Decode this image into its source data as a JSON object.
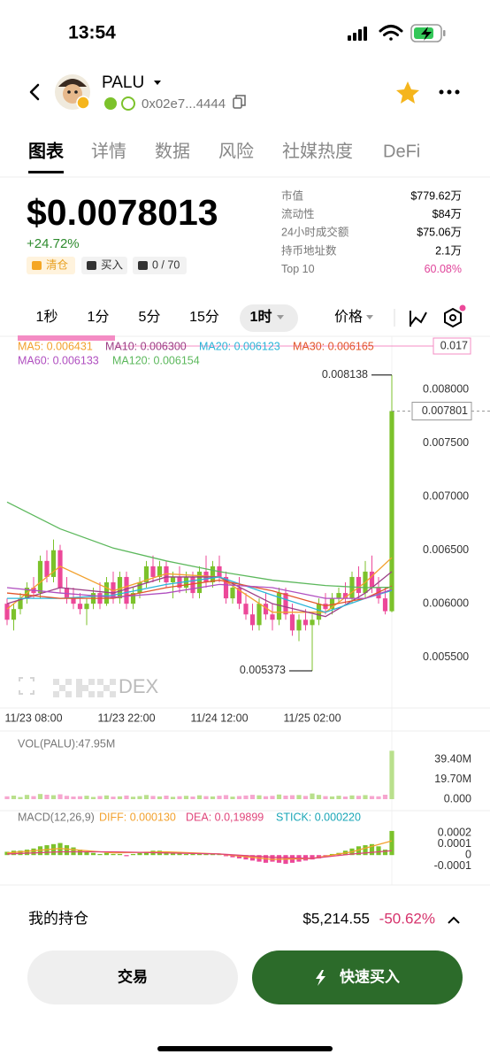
{
  "status_bar": {
    "time": "13:54"
  },
  "header": {
    "token": "PALU",
    "address": "0x02e7...4444"
  },
  "tabs": [
    "图表",
    "详情",
    "数据",
    "风险",
    "社媒热度",
    "DeFi"
  ],
  "price": {
    "value": "$0.0078013",
    "change": "+24.72%",
    "actions": [
      "清仓",
      "买入",
      "0 / 70"
    ]
  },
  "stats": [
    {
      "label": "市值",
      "value": "$779.62万"
    },
    {
      "label": "流动性",
      "value": "$84万"
    },
    {
      "label": "24小时成交额",
      "value": "$75.06万"
    },
    {
      "label": "持币地址数",
      "value": "2.1万"
    },
    {
      "label": "Top 10",
      "value": "60.08%"
    }
  ],
  "intervals": [
    "1秒",
    "1分",
    "5分",
    "15分",
    "1时"
  ],
  "price_toggle": "价格",
  "watermark": "DEX",
  "chart_data": [
    {
      "type": "candlestick",
      "categories": [
        null,
        null,
        null,
        null,
        "11/23 08:00",
        null,
        null,
        null,
        null,
        null,
        null,
        null,
        null,
        null,
        null,
        null,
        null,
        null,
        "11/23 22:00",
        null,
        null,
        null,
        null,
        null,
        null,
        null,
        null,
        null,
        null,
        null,
        null,
        null,
        "11/24 12:00",
        null,
        null,
        null,
        null,
        null,
        null,
        null,
        null,
        null,
        null,
        null,
        null,
        null,
        "11/25 02:00",
        null,
        null,
        null,
        null,
        null,
        null,
        null,
        null,
        null,
        null,
        null,
        null
      ],
      "open": [
        0.006,
        0.00585,
        0.00595,
        0.00605,
        0.00615,
        0.0061,
        0.0064,
        0.00625,
        0.0065,
        0.00615,
        0.00605,
        0.006,
        0.00595,
        0.006,
        0.0061,
        0.006,
        0.0062,
        0.00605,
        0.00625,
        0.006,
        0.0061,
        0.0062,
        0.00635,
        0.00625,
        0.00635,
        0.0062,
        0.00625,
        0.00615,
        0.00625,
        0.0061,
        0.0063,
        0.0062,
        0.00635,
        0.00625,
        0.00605,
        0.00615,
        0.006,
        0.0059,
        0.0058,
        0.006,
        0.0059,
        0.00585,
        0.0061,
        0.0059,
        0.00575,
        0.00585,
        0.0058,
        0.00585,
        0.006,
        0.00595,
        0.00605,
        0.0061,
        0.00605,
        0.00625,
        0.0061,
        0.0063,
        0.00615,
        0.00605,
        0.00593
      ],
      "high": [
        0.00605,
        0.006,
        0.0061,
        0.0062,
        0.00625,
        0.00645,
        0.0065,
        0.0066,
        0.00655,
        0.00625,
        0.00615,
        0.0061,
        0.00605,
        0.00615,
        0.0062,
        0.00625,
        0.0063,
        0.0063,
        0.0063,
        0.00615,
        0.00625,
        0.0064,
        0.00645,
        0.0064,
        0.0064,
        0.0063,
        0.00635,
        0.0063,
        0.0063,
        0.00635,
        0.00645,
        0.0064,
        0.00645,
        0.0063,
        0.0062,
        0.00625,
        0.0061,
        0.006,
        0.00605,
        0.0061,
        0.006,
        0.00615,
        0.00615,
        0.006,
        0.0059,
        0.00595,
        0.0059,
        0.00605,
        0.0061,
        0.0061,
        0.00615,
        0.0062,
        0.0063,
        0.00635,
        0.0064,
        0.00645,
        0.00625,
        0.00615,
        0.008138
      ],
      "low": [
        0.0058,
        0.00575,
        0.0059,
        0.006,
        0.00605,
        0.00605,
        0.0062,
        0.0062,
        0.0061,
        0.006,
        0.00595,
        0.0059,
        0.0058,
        0.00595,
        0.00595,
        0.00598,
        0.006,
        0.006,
        0.00595,
        0.00595,
        0.00605,
        0.00615,
        0.0062,
        0.0062,
        0.00615,
        0.00605,
        0.0061,
        0.0061,
        0.00605,
        0.00605,
        0.00615,
        0.00615,
        0.0062,
        0.006,
        0.006,
        0.00595,
        0.00585,
        0.00575,
        0.00575,
        0.00585,
        0.00575,
        0.0058,
        0.00585,
        0.0057,
        0.00565,
        0.00575,
        0.005373,
        0.0058,
        0.0059,
        0.0059,
        0.006,
        0.006,
        0.006,
        0.00605,
        0.00605,
        0.0061,
        0.006,
        0.0059,
        0.00592
      ],
      "close": [
        0.00585,
        0.00595,
        0.00605,
        0.00615,
        0.0061,
        0.0064,
        0.00625,
        0.0065,
        0.00615,
        0.00605,
        0.006,
        0.00595,
        0.006,
        0.0061,
        0.006,
        0.0062,
        0.00605,
        0.00625,
        0.006,
        0.0061,
        0.0062,
        0.00635,
        0.00625,
        0.00635,
        0.0062,
        0.00625,
        0.00615,
        0.00625,
        0.0061,
        0.0063,
        0.0062,
        0.00635,
        0.00625,
        0.00605,
        0.00615,
        0.006,
        0.0059,
        0.0058,
        0.006,
        0.0059,
        0.00585,
        0.0061,
        0.0059,
        0.00575,
        0.00585,
        0.0058,
        0.00585,
        0.006,
        0.00595,
        0.00605,
        0.0061,
        0.00605,
        0.00625,
        0.0061,
        0.0063,
        0.00615,
        0.00605,
        0.00593,
        0.007801
      ],
      "up_color": "#7cc22b",
      "down_color": "#ec4899",
      "series": [
        {
          "name": "MA5: 0.006431",
          "color": "#f2a12e",
          "x": [
            0,
            8,
            16,
            24,
            32,
            40,
            48,
            54,
            58
          ],
          "values": [
            0.00595,
            0.00635,
            0.00612,
            0.00628,
            0.00625,
            0.00592,
            0.00592,
            0.0062,
            0.006431
          ]
        },
        {
          "name": "MA10: 0.006300",
          "color": "#9c3f86",
          "x": [
            0,
            8,
            16,
            24,
            32,
            40,
            48,
            54,
            58
          ],
          "values": [
            0.006,
            0.00615,
            0.0061,
            0.00625,
            0.00625,
            0.006,
            0.00588,
            0.0061,
            0.0063
          ]
        },
        {
          "name": "MA20: 0.006123",
          "color": "#2bb5d8",
          "x": [
            0,
            8,
            16,
            24,
            32,
            40,
            48,
            54,
            58
          ],
          "values": [
            0.00605,
            0.00605,
            0.00608,
            0.00618,
            0.00625,
            0.00608,
            0.00592,
            0.00605,
            0.006123
          ]
        },
        {
          "name": "MA30: 0.006165",
          "color": "#e2562a",
          "x": [
            0,
            8,
            16,
            24,
            32,
            40,
            48,
            54,
            58
          ],
          "values": [
            0.0061,
            0.00605,
            0.00605,
            0.00615,
            0.00622,
            0.00612,
            0.00598,
            0.00605,
            0.006165
          ]
        },
        {
          "name": "MA60: 0.006133",
          "color": "#b04fc0",
          "x": [
            0,
            8,
            16,
            24,
            32,
            40,
            48,
            54,
            58
          ],
          "values": [
            0.00615,
            0.0061,
            0.00606,
            0.0061,
            0.00618,
            0.00615,
            0.00605,
            0.00605,
            0.006133
          ]
        },
        {
          "name": "MA120: 0.006154",
          "color": "#5cb85c",
          "x": [
            0,
            8,
            16,
            24,
            32,
            40,
            48,
            54,
            58
          ],
          "values": [
            0.00695,
            0.0067,
            0.00652,
            0.0064,
            0.0063,
            0.00622,
            0.00617,
            0.00615,
            0.006154
          ]
        }
      ],
      "top_tag": "0.017",
      "ylim": [
        0.005025,
        0.0085
      ],
      "yticks": [
        {
          "value": 0.008,
          "label": "0.008000"
        },
        {
          "value": 0.0075,
          "label": "0.007500"
        },
        {
          "value": 0.007,
          "label": "0.007000"
        },
        {
          "value": 0.0065,
          "label": "0.006500"
        },
        {
          "value": 0.006,
          "label": "0.006000"
        },
        {
          "value": 0.0055,
          "label": "0.005500"
        }
      ],
      "grid": false
    },
    {
      "type": "bar",
      "title": "VOL(PALU):47.95M",
      "values": [
        2800000,
        3500000,
        2100000,
        4200000,
        3000000,
        5100000,
        4400000,
        3900000,
        4800000,
        3300000,
        2600000,
        2900000,
        3400000,
        2200000,
        3100000,
        3700000,
        2500000,
        2800000,
        3600000,
        2400000,
        3000000,
        4100000,
        3200000,
        2700000,
        3500000,
        2300000,
        2900000,
        3300000,
        2600000,
        3800000,
        3000000,
        2700000,
        3400000,
        4000000,
        2500000,
        3100000,
        3600000,
        4300000,
        3800000,
        2900000,
        3300000,
        4600000,
        3500000,
        3900000,
        4100000,
        3200000,
        5600000,
        4200000,
        3000000,
        2700000,
        3400000,
        2600000,
        3700000,
        3300000,
        4000000,
        3100000,
        2800000,
        4400000,
        47950000
      ],
      "up_color": "#b9e08c",
      "down_color": "#f6a6cf",
      "ylim": [
        0,
        50000000
      ],
      "yticks": [
        {
          "value": 39400000,
          "label": "39.40M"
        },
        {
          "value": 19700000,
          "label": "19.70M"
        },
        {
          "value": 0,
          "label": "0.000"
        }
      ]
    },
    {
      "type": "bar",
      "title": "MACD(12,26,9)",
      "name": "STICK: 0.000220",
      "name_color": "#1aa6b7",
      "values": [
        3e-05,
        4e-05,
        4e-05,
        5e-05,
        6e-05,
        8e-05,
        9e-05,
        0.0001,
        0.00011,
        9e-05,
        7e-05,
        5e-05,
        3e-05,
        2e-05,
        1e-05,
        2e-05,
        1e-05,
        1e-05,
        -1e-05,
        1e-05,
        2e-05,
        3e-05,
        4e-05,
        4e-05,
        3e-05,
        2e-05,
        2e-05,
        1e-05,
        1e-05,
        2e-05,
        1e-05,
        1e-05,
        1e-05,
        -1e-05,
        -2e-05,
        -3e-05,
        -4e-05,
        -5e-05,
        -6e-05,
        -7e-05,
        -6e-05,
        -7e-05,
        -8e-05,
        -7e-05,
        -6e-05,
        -5e-05,
        -4e-05,
        -3e-05,
        -1e-05,
        1e-05,
        2e-05,
        4e-05,
        6e-05,
        8e-05,
        9e-05,
        0.0001,
        8e-05,
        5e-05,
        0.00022
      ],
      "up_color": "#7cc22b",
      "down_color": "#ec4899",
      "series": [
        {
          "name": "DIFF: 0.000130",
          "color": "#f2a12e",
          "x": [
            0,
            8,
            16,
            24,
            32,
            40,
            46,
            52,
            58
          ],
          "values": [
            2e-05,
            6e-05,
            2e-05,
            3e-05,
            1e-05,
            -4e-05,
            -3e-05,
            3e-05,
            0.00013
          ]
        },
        {
          "name": "DEA: 0.0,19899",
          "color": "#e0457b",
          "x": [
            0,
            8,
            16,
            24,
            32,
            40,
            46,
            52,
            58
          ],
          "values": [
            1e-05,
            3e-05,
            3e-05,
            2e-05,
            1e-05,
            -2e-05,
            -3e-05,
            1e-05,
            4e-05
          ]
        }
      ],
      "ylim": [
        -0.0002,
        0.0003
      ],
      "yticks": [
        0.0002,
        0.0001,
        0,
        -0.0001
      ]
    }
  ],
  "position": {
    "label": "我的持仓",
    "value": "$5,214.55",
    "change": "-50.62%"
  },
  "buttons": {
    "trade": "交易",
    "quick_buy": "快速买入"
  }
}
